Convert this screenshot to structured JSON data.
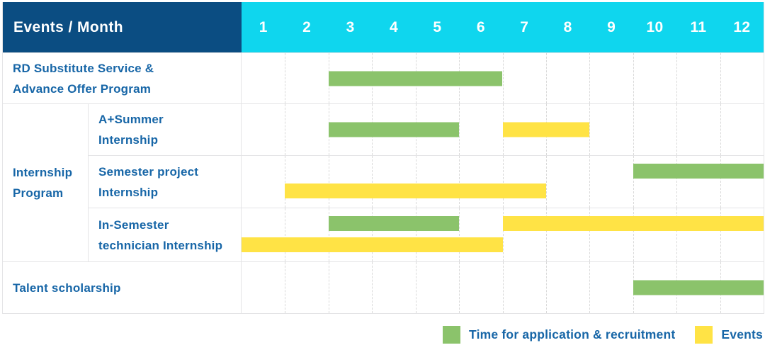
{
  "header": {
    "title": "Events / Month",
    "months": [
      "1",
      "2",
      "3",
      "4",
      "5",
      "6",
      "7",
      "8",
      "9",
      "10",
      "11",
      "12"
    ]
  },
  "colors": {
    "header_navy": "#0b4d82",
    "header_cyan": "#0fd6ee",
    "text_blue": "#1766a7",
    "application_green": "#8bc36b",
    "events_yellow": "#ffe345",
    "grid_border": "#e4e4e6"
  },
  "chart_data": {
    "type": "gantt",
    "title": "Events / Month",
    "x_axis": {
      "label": "Month",
      "ticks": [
        1,
        2,
        3,
        4,
        5,
        6,
        7,
        8,
        9,
        10,
        11,
        12
      ],
      "range": [
        1,
        12
      ]
    },
    "legend_position": "bottom-right",
    "grid": "dashed-vertical-month-lines",
    "rows": [
      {
        "label_lines": [
          "RD Substitute Service &",
          "Advance Offer Program"
        ],
        "wide": true,
        "bars": [
          {
            "series": "application",
            "start_month": 3,
            "end_month": 6,
            "track": "center"
          }
        ]
      },
      {
        "group": {
          "label_lines": [
            "Internship",
            "Program"
          ],
          "span": 3
        },
        "label_lines": [
          "A+Summer",
          "Internship"
        ],
        "wide": false,
        "bars": [
          {
            "series": "application",
            "start_month": 3,
            "end_month": 5,
            "track": "center"
          },
          {
            "series": "events",
            "start_month": 7,
            "end_month": 8,
            "track": "center"
          }
        ]
      },
      {
        "label_lines": [
          "Semester project",
          "Internship"
        ],
        "wide": false,
        "bars": [
          {
            "series": "application",
            "start_month": 10,
            "end_month": 12,
            "track": "upper"
          },
          {
            "series": "events",
            "start_month": 2,
            "end_month": 7,
            "track": "lower"
          }
        ]
      },
      {
        "label_lines": [
          "In-Semester",
          "technician Internship"
        ],
        "wide": false,
        "bars": [
          {
            "series": "application",
            "start_month": 3,
            "end_month": 5,
            "track": "upper"
          },
          {
            "series": "events",
            "start_month": 7,
            "end_month": 12,
            "track": "upper"
          },
          {
            "series": "events",
            "start_month": 1,
            "end_month": 6,
            "track": "lower"
          }
        ]
      },
      {
        "label_lines": [
          "Talent scholarship"
        ],
        "wide": true,
        "bars": [
          {
            "series": "application",
            "start_month": 10,
            "end_month": 12,
            "track": "center"
          }
        ]
      }
    ],
    "legend": [
      {
        "series": "application",
        "label": "Time for application & recruitment",
        "color": "#8bc36b"
      },
      {
        "series": "events",
        "label": "Events",
        "color": "#ffe345"
      }
    ]
  }
}
